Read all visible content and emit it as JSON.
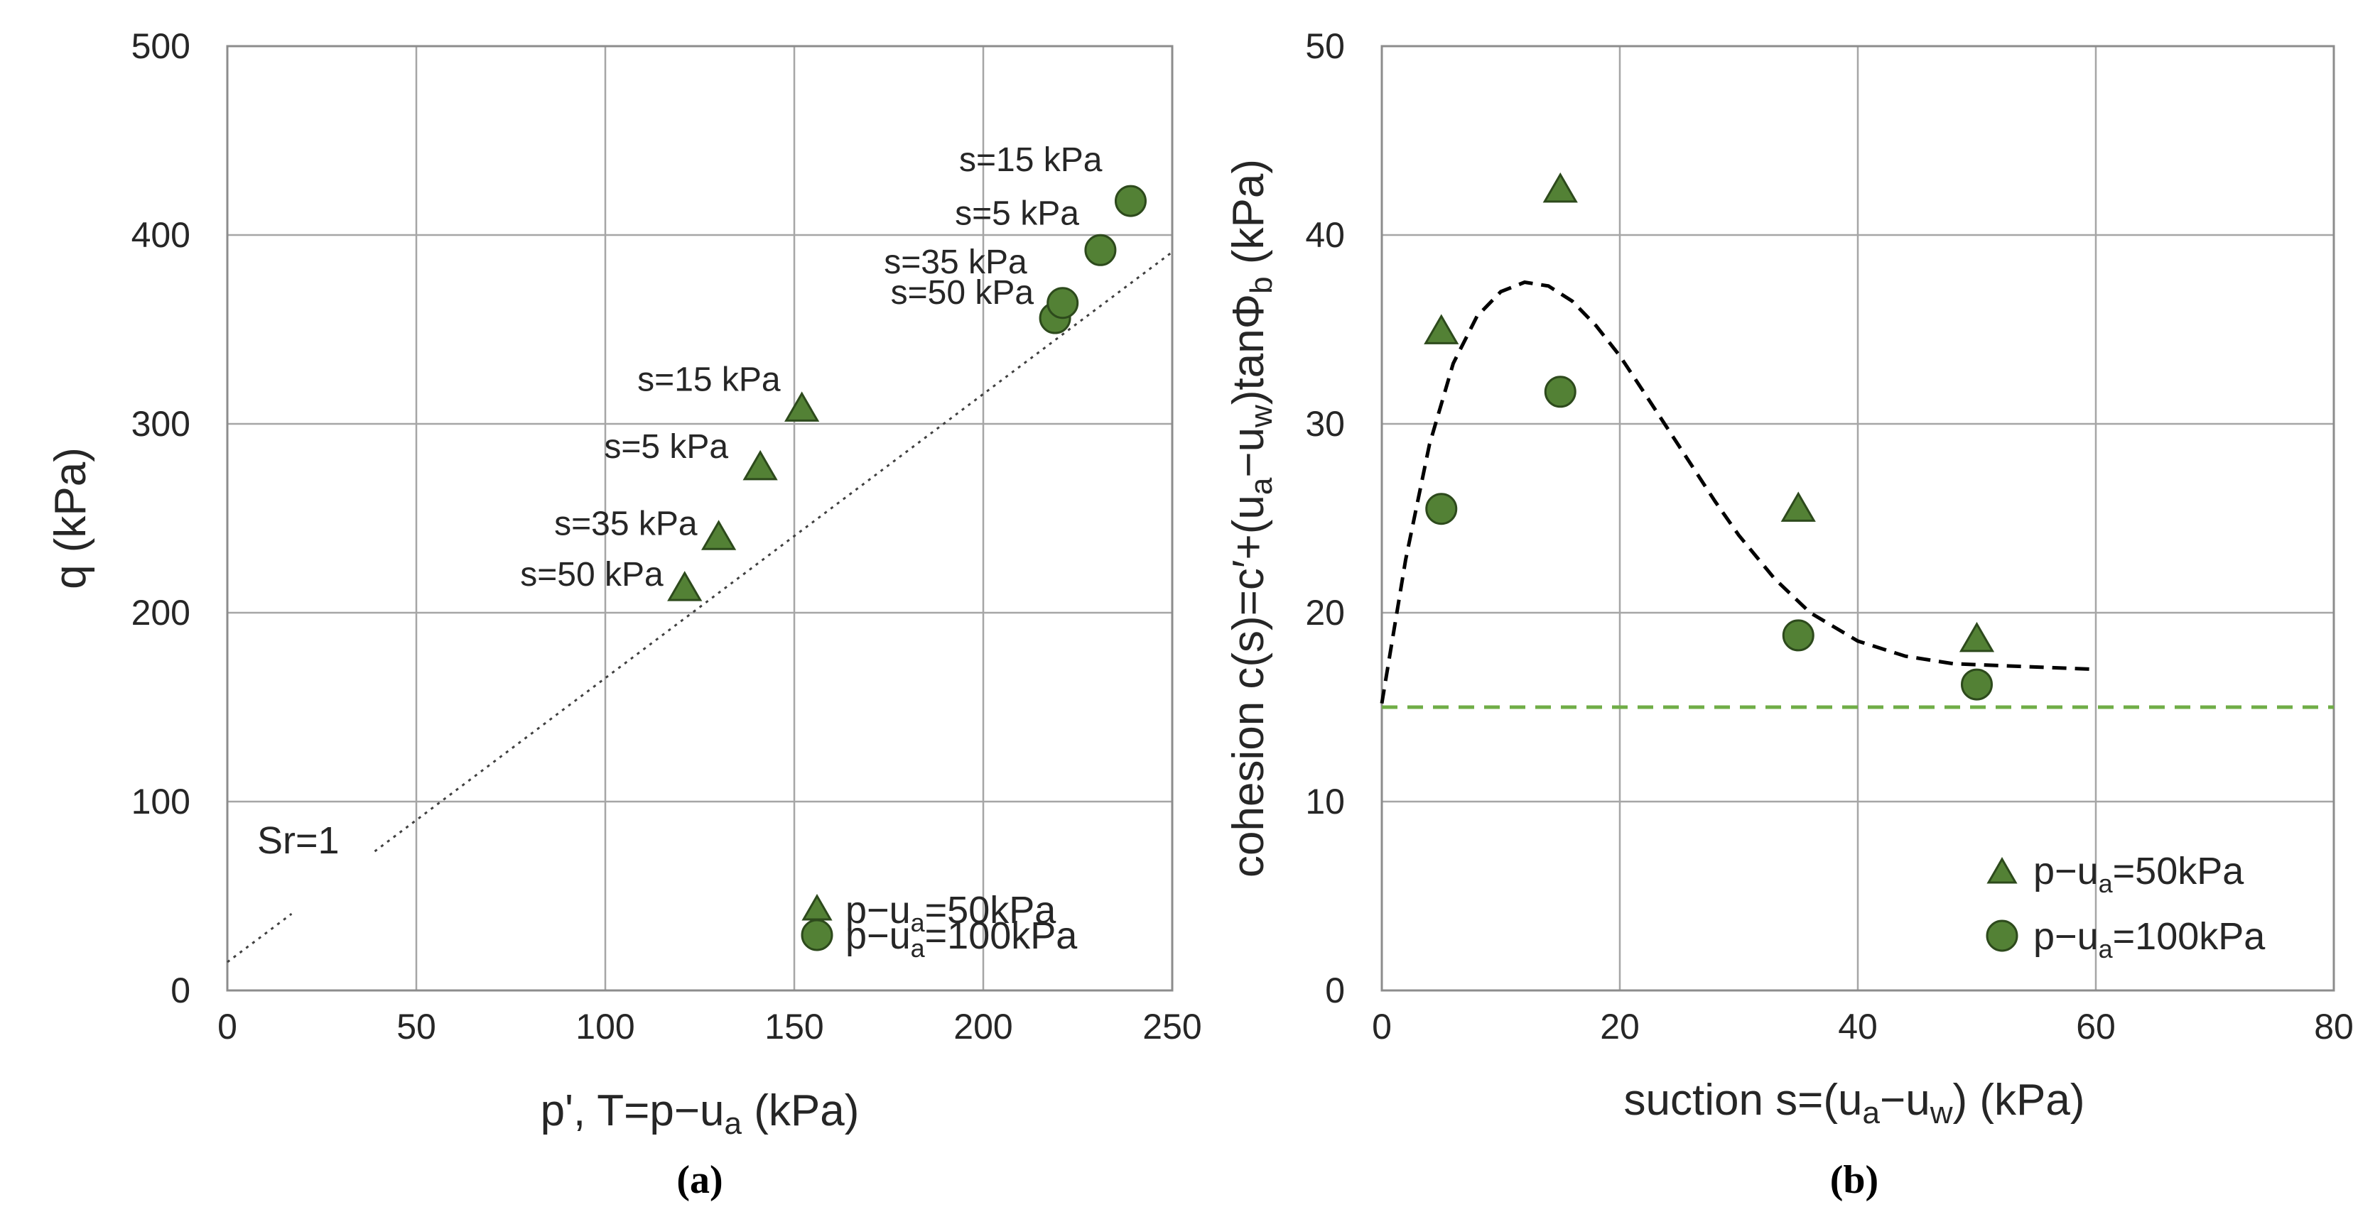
{
  "chart_data": [
    {
      "type": "scatter",
      "caption": "(a)",
      "xlabel": "p', T=p−u",
      "xlabel_sub": "a",
      "xlabel_tail": " (kPa)",
      "ylabel": "q (kPa)",
      "xlim": [
        0,
        250
      ],
      "ylim": [
        0,
        500
      ],
      "xticks": [
        0,
        50,
        100,
        150,
        200,
        250
      ],
      "yticks": [
        0,
        100,
        200,
        300,
        400,
        500
      ],
      "grid": true,
      "marker_color": "#538135",
      "series": [
        {
          "name": "p−u_a=50kPa",
          "legend_main": "p−u",
          "legend_sub": "a",
          "legend_tail": "=50kPa",
          "marker": "triangle",
          "x": [
            121,
            130,
            141,
            152
          ],
          "y": [
            212,
            239,
            276,
            307
          ]
        },
        {
          "name": "p−u_a=100kPa",
          "legend_main": "p−u",
          "legend_sub": "a",
          "legend_tail": "=100kPa",
          "marker": "circle",
          "x": [
            219,
            221,
            231,
            239
          ],
          "y": [
            356,
            364,
            392,
            418
          ]
        }
      ],
      "reference_line": {
        "label": "Sr=1",
        "style": "dotted",
        "x": [
          0,
          250
        ],
        "y": [
          15,
          391
        ]
      },
      "annotations": [
        {
          "text": "s=50 kPa",
          "x": 121,
          "y": 212
        },
        {
          "text": "s=35 kPa",
          "x": 130,
          "y": 239
        },
        {
          "text": "s=5 kPa",
          "x": 141,
          "y": 276
        },
        {
          "text": "s=15 kPa",
          "x": 152,
          "y": 307
        },
        {
          "text": "s=50 kPa",
          "x": 219,
          "y": 356
        },
        {
          "text": "s=35 kPa",
          "x": 221,
          "y": 364
        },
        {
          "text": "s=5 kPa",
          "x": 231,
          "y": 392
        },
        {
          "text": "s=15 kPa",
          "x": 239,
          "y": 418
        }
      ]
    },
    {
      "type": "scatter",
      "caption": "(b)",
      "xlabel": "suction s=(u",
      "xlabel_parts": [
        "a",
        "−u",
        "w",
        ") (kPa)"
      ],
      "ylabel_parts": [
        "cohesion c(s)=c′+(u",
        "a",
        "−u",
        "w",
        ")tanΦ",
        "b",
        " (kPa)"
      ],
      "xlim": [
        0,
        80
      ],
      "ylim": [
        0,
        50
      ],
      "xticks": [
        0,
        20,
        40,
        60,
        80
      ],
      "yticks": [
        0,
        10,
        20,
        30,
        40,
        50
      ],
      "grid": true,
      "marker_color": "#538135",
      "series": [
        {
          "name": "p−u_a=50kPa",
          "legend_main": "p−u",
          "legend_sub": "a",
          "legend_tail": "=50kPa",
          "marker": "triangle",
          "x": [
            5,
            15,
            35,
            50
          ],
          "y": [
            34.8,
            42.3,
            25.4,
            18.5
          ]
        },
        {
          "name": "p−u_a=100kPa",
          "legend_main": "p−u",
          "legend_sub": "a",
          "legend_tail": "=100kPa",
          "marker": "circle",
          "x": [
            5,
            15,
            35,
            50
          ],
          "y": [
            25.5,
            31.7,
            18.8,
            16.2
          ]
        }
      ],
      "fit_curve": {
        "style": "dashed",
        "color": "#000000",
        "x": [
          0,
          2,
          4,
          6,
          8,
          10,
          12,
          14,
          16,
          18,
          20,
          22,
          25,
          28,
          30,
          33,
          36,
          40,
          44,
          48,
          52,
          56,
          60
        ],
        "y": [
          15.2,
          22.8,
          28.9,
          33.2,
          35.7,
          37.0,
          37.5,
          37.3,
          36.5,
          35.2,
          33.6,
          31.7,
          28.8,
          25.9,
          24.1,
          21.8,
          20.0,
          18.5,
          17.7,
          17.3,
          17.2,
          17.1,
          17.0
        ]
      },
      "baseline": {
        "style": "dashed",
        "color": "#70ad47",
        "y": 15
      }
    }
  ]
}
